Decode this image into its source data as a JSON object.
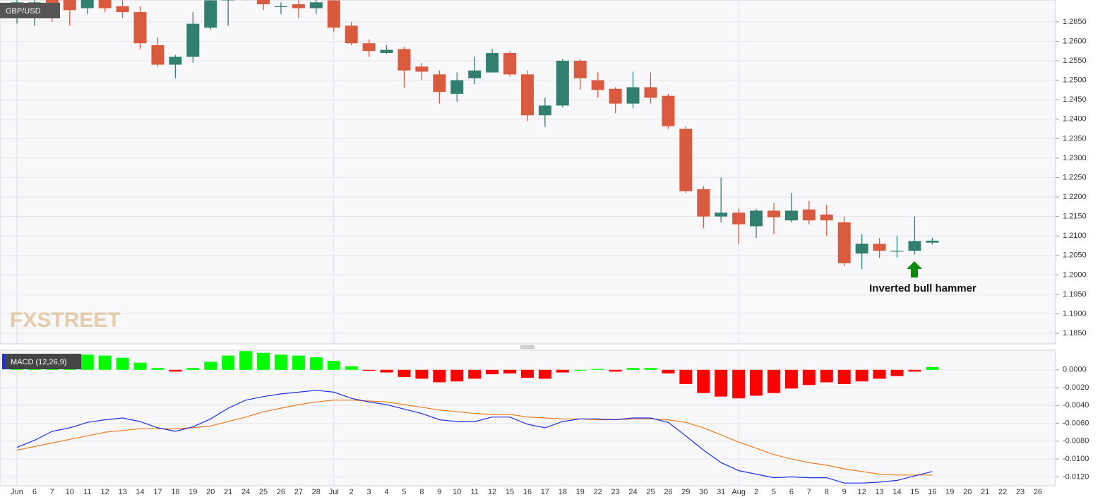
{
  "chart_data": [
    {
      "type": "candlestick",
      "symbol": "GBP/USD",
      "watermark": "FXSTREET",
      "annotation": "Inverted bull hammer",
      "up_color": "#31806f",
      "down_color": "#d95a3f",
      "grid": true,
      "categories": [
        "Jun",
        "6",
        "7",
        "10",
        "11",
        "12",
        "13",
        "14",
        "17",
        "18",
        "19",
        "20",
        "21",
        "24",
        "25",
        "26",
        "27",
        "28",
        "Jul",
        "2",
        "3",
        "4",
        "5",
        "8",
        "9",
        "10",
        "11",
        "12",
        "15",
        "16",
        "17",
        "18",
        "19",
        "22",
        "23",
        "24",
        "25",
        "26",
        "29",
        "30",
        "31",
        "Aug",
        "2",
        "5",
        "6",
        "7",
        "8",
        "9",
        "12",
        "13",
        "14",
        "15",
        "16",
        "19",
        "20",
        "21",
        "22",
        "23",
        "26"
      ],
      "open": [
        1.266,
        1.2665,
        1.271,
        1.272,
        1.2685,
        1.271,
        1.269,
        1.2675,
        1.259,
        1.254,
        1.256,
        1.2635,
        1.2705,
        1.271,
        1.2715,
        1.269,
        1.2695,
        1.2685,
        1.2705,
        1.264,
        1.2595,
        1.257,
        1.258,
        1.2535,
        1.2515,
        1.2465,
        1.2505,
        1.252,
        1.257,
        1.2515,
        1.241,
        1.2435,
        1.255,
        1.25,
        1.2478,
        1.244,
        1.2482,
        1.246,
        1.2375,
        1.222,
        1.215,
        1.216,
        1.2125,
        1.2165,
        1.214,
        1.2168,
        1.2155,
        1.2135,
        1.2055,
        1.208,
        1.206,
        1.2062,
        1.2083,
        null,
        null,
        null,
        null,
        null,
        null
      ],
      "high": [
        1.272,
        1.273,
        1.273,
        1.274,
        1.272,
        1.272,
        1.2705,
        1.269,
        1.261,
        1.2565,
        1.2675,
        1.272,
        1.273,
        1.274,
        1.273,
        1.27,
        1.2705,
        1.2715,
        1.271,
        1.265,
        1.2605,
        1.259,
        1.2585,
        1.2545,
        1.2525,
        1.252,
        1.256,
        1.258,
        1.2575,
        1.2525,
        1.2455,
        1.2555,
        1.2555,
        1.252,
        1.2482,
        1.2522,
        1.252,
        1.2465,
        1.2382,
        1.2228,
        1.225,
        1.217,
        1.217,
        1.2185,
        1.221,
        1.219,
        1.218,
        1.215,
        1.2105,
        1.2095,
        1.21,
        1.215,
        1.2095,
        null,
        null,
        null,
        null,
        null,
        null
      ],
      "low": [
        1.2645,
        1.264,
        1.265,
        1.264,
        1.267,
        1.2675,
        1.266,
        1.258,
        1.2535,
        1.2505,
        1.2545,
        1.263,
        1.264,
        1.2705,
        1.268,
        1.267,
        1.266,
        1.267,
        1.2625,
        1.259,
        1.256,
        1.2568,
        1.248,
        1.25,
        1.244,
        1.2445,
        1.249,
        1.252,
        1.251,
        1.2395,
        1.238,
        1.243,
        1.2475,
        1.2455,
        1.2415,
        1.2428,
        1.244,
        1.2375,
        1.221,
        1.212,
        1.2135,
        1.208,
        1.2095,
        1.2105,
        1.2135,
        1.213,
        1.21,
        1.2022,
        1.2015,
        1.2043,
        1.2045,
        1.2052,
        1.2078,
        null,
        null,
        null,
        null,
        null,
        null
      ],
      "close": [
        1.27,
        1.27,
        1.269,
        1.268,
        1.271,
        1.2685,
        1.2675,
        1.2595,
        1.254,
        1.256,
        1.2645,
        1.2705,
        1.271,
        1.2712,
        1.2695,
        1.269,
        1.2685,
        1.27,
        1.2635,
        1.2595,
        1.2575,
        1.2578,
        1.2525,
        1.2522,
        1.247,
        1.25,
        1.2525,
        1.257,
        1.2515,
        1.241,
        1.2435,
        1.255,
        1.2505,
        1.2475,
        1.244,
        1.2482,
        1.2455,
        1.2382,
        1.2215,
        1.215,
        1.216,
        1.213,
        1.2165,
        1.2148,
        1.2165,
        1.214,
        1.214,
        1.203,
        1.208,
        1.2062,
        1.2062,
        1.2087,
        1.2088,
        null,
        null,
        null,
        null,
        null,
        null
      ],
      "ylim": [
        1.1823,
        1.2706
      ],
      "yticks": [
        {
          "value": 1.265,
          "label": "1.2650"
        },
        {
          "value": 1.26,
          "label": "1.2600"
        },
        {
          "value": 1.255,
          "label": "1.2550"
        },
        {
          "value": 1.25,
          "label": "1.2500"
        },
        {
          "value": 1.245,
          "label": "1.2450"
        },
        {
          "value": 1.24,
          "label": "1.2400"
        },
        {
          "value": 1.235,
          "label": "1.2350"
        },
        {
          "value": 1.23,
          "label": "1.2300"
        },
        {
          "value": 1.225,
          "label": "1.2250"
        },
        {
          "value": 1.22,
          "label": "1.2200"
        },
        {
          "value": 1.215,
          "label": "1.2150"
        },
        {
          "value": 1.21,
          "label": "1.2100"
        },
        {
          "value": 1.205,
          "label": "1.2050"
        },
        {
          "value": 1.2,
          "label": "1.2000"
        },
        {
          "value": 1.195,
          "label": "1.1950"
        },
        {
          "value": 1.19,
          "label": "1.1900"
        },
        {
          "value": 1.185,
          "label": "1.1850"
        }
      ]
    },
    {
      "type": "macd",
      "label": "MACD (12,26,9)",
      "grid": true,
      "histogram": {
        "positive_color": "#00ff00",
        "negative_color": "#ff0000",
        "values": [
          0.0012,
          0.0014,
          0.0016,
          0.0017,
          0.0017,
          0.0016,
          0.00135,
          0.0008,
          0.0002,
          -0.0002,
          0.0002,
          0.0009,
          0.0016,
          0.0021,
          0.0019,
          0.0017,
          0.0016,
          0.0014,
          0.001,
          0.0004,
          -0.0001,
          -0.0003,
          -0.0008,
          -0.001,
          -0.0014,
          -0.0013,
          -0.001,
          -0.0005,
          -0.0004,
          -0.0009,
          -0.001,
          -0.0003,
          0.0,
          0.0001,
          -0.0002,
          0.0002,
          0.0002,
          -0.0004,
          -0.0016,
          -0.0026,
          -0.003,
          -0.0032,
          -0.0029,
          -0.0026,
          -0.0021,
          -0.0017,
          -0.0014,
          -0.0016,
          -0.0013,
          -0.001,
          -0.0007,
          -0.0002,
          0.0003,
          null,
          null,
          null,
          null,
          null,
          null
        ]
      },
      "macd": {
        "color": "#1a2ee8",
        "values": [
          -0.0087,
          -0.0079,
          -0.0069,
          -0.0065,
          -0.0059,
          -0.0056,
          -0.0054,
          -0.0058,
          -0.0065,
          -0.0069,
          -0.0064,
          -0.0055,
          -0.0043,
          -0.0034,
          -0.003,
          -0.0027,
          -0.0025,
          -0.0023,
          -0.0025,
          -0.0032,
          -0.0036,
          -0.0039,
          -0.0044,
          -0.0049,
          -0.0056,
          -0.0058,
          -0.0058,
          -0.0053,
          -0.0053,
          -0.0061,
          -0.0065,
          -0.0058,
          -0.0055,
          -0.0055,
          -0.0056,
          -0.0054,
          -0.0054,
          -0.0059,
          -0.0074,
          -0.009,
          -0.0104,
          -0.0113,
          -0.0117,
          -0.0121,
          -0.012,
          -0.0121,
          -0.0121,
          -0.0127,
          -0.0127,
          -0.0126,
          -0.0124,
          -0.0119,
          -0.0114,
          null,
          null,
          null,
          null,
          null,
          null
        ]
      },
      "signal": {
        "color": "#f07a1a",
        "values": [
          -0.009,
          -0.0086,
          -0.0082,
          -0.0078,
          -0.0074,
          -0.007,
          -0.0068,
          -0.0066,
          -0.0066,
          -0.0066,
          -0.0065,
          -0.0063,
          -0.0058,
          -0.0053,
          -0.0047,
          -0.0043,
          -0.0039,
          -0.0036,
          -0.0034,
          -0.0034,
          -0.0035,
          -0.0036,
          -0.0039,
          -0.0042,
          -0.0045,
          -0.0047,
          -0.0049,
          -0.005,
          -0.005,
          -0.0053,
          -0.0054,
          -0.0055,
          -0.0055,
          -0.0056,
          -0.0056,
          -0.0055,
          -0.0055,
          -0.0056,
          -0.0059,
          -0.0065,
          -0.0073,
          -0.0081,
          -0.0088,
          -0.0095,
          -0.01,
          -0.0104,
          -0.0107,
          -0.0111,
          -0.0114,
          -0.0117,
          -0.0118,
          -0.0118,
          -0.0118,
          null,
          null,
          null,
          null,
          null,
          null
        ]
      },
      "ylim": [
        -0.013,
        0.0022
      ],
      "yticks": [
        {
          "value": 0,
          "label": "0.0000"
        },
        {
          "value": -0.002,
          "label": "-0.0020"
        },
        {
          "value": -0.004,
          "label": "-0.0040"
        },
        {
          "value": -0.006,
          "label": "-0.0060"
        },
        {
          "value": -0.008,
          "label": "-0.0080"
        },
        {
          "value": -0.01,
          "label": "-0.0100"
        },
        {
          "value": -0.012,
          "label": "-0.0120"
        }
      ]
    }
  ]
}
